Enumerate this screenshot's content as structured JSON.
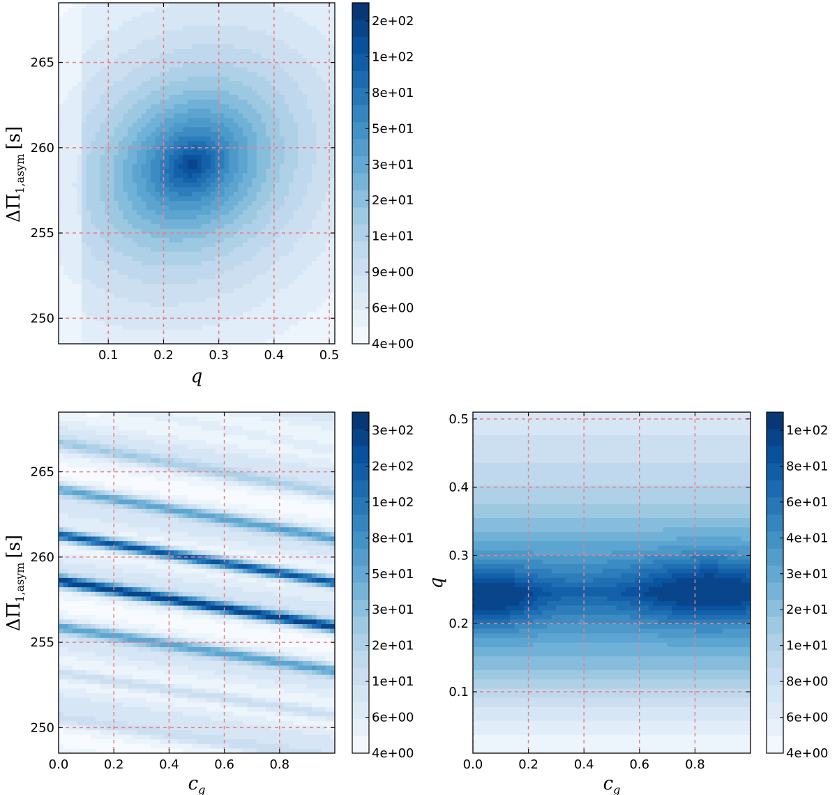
{
  "colors": {
    "colormap": [
      "#f7fbff",
      "#deebf7",
      "#c6dbef",
      "#9ecae1",
      "#6baed6",
      "#4292c6",
      "#2171b5",
      "#08519c",
      "#08306b"
    ],
    "grid": "#e8828a"
  },
  "chart_data": [
    {
      "type": "heatmap",
      "panel": "top-left",
      "xlabel": "q",
      "ylabel": "ΔΠ",
      "ylabel_subscript": "1,asym",
      "ylabel_unit": "[s]",
      "xlim": [
        0.01,
        0.51
      ],
      "ylim": [
        248.5,
        268.5
      ],
      "xticks": [
        0.1,
        0.2,
        0.3,
        0.4,
        0.5
      ],
      "xtick_labels": [
        "0.1",
        "0.2",
        "0.3",
        "0.4",
        "0.5"
      ],
      "yticks": [
        250,
        255,
        260,
        265
      ],
      "ytick_labels": [
        "250",
        "255",
        "260",
        "265"
      ],
      "grid": true,
      "minimum": {
        "x": 0.25,
        "y": 259
      },
      "colorbar_labels": [
        "2e+02",
        "1e+02",
        "8e+01",
        "5e+01",
        "3e+01",
        "2e+01",
        "1e+01",
        "9e+00",
        "6e+00",
        "4e+00"
      ]
    },
    {
      "type": "heatmap",
      "panel": "bottom-left",
      "xlabel": "c",
      "xlabel_subscript": "g",
      "ylabel": "ΔΠ",
      "ylabel_subscript": "1,asym",
      "ylabel_unit": "[s]",
      "xlim": [
        0.0,
        1.0
      ],
      "ylim": [
        248.5,
        268.5
      ],
      "xticks": [
        0.0,
        0.2,
        0.4,
        0.6,
        0.8
      ],
      "xtick_labels": [
        "0.0",
        "0.2",
        "0.4",
        "0.6",
        "0.8"
      ],
      "yticks": [
        250,
        255,
        260,
        265
      ],
      "ytick_labels": [
        "250",
        "255",
        "260",
        "265"
      ],
      "grid": true,
      "minima_bands": [
        {
          "y_at_x0": 261.3,
          "y_at_x1": 258.5
        },
        {
          "y_at_x0": 258.6,
          "y_at_x1": 255.9
        }
      ],
      "colorbar_labels": [
        "3e+02",
        "2e+02",
        "1e+02",
        "8e+01",
        "5e+01",
        "3e+01",
        "2e+01",
        "1e+01",
        "6e+00",
        "4e+00"
      ]
    },
    {
      "type": "heatmap",
      "panel": "bottom-right",
      "xlabel": "c",
      "xlabel_subscript": "g",
      "ylabel": "q",
      "xlim": [
        0.0,
        1.0
      ],
      "ylim": [
        0.01,
        0.51
      ],
      "xticks": [
        0.0,
        0.2,
        0.4,
        0.6,
        0.8
      ],
      "xtick_labels": [
        "0.0",
        "0.2",
        "0.4",
        "0.6",
        "0.8"
      ],
      "yticks": [
        0.1,
        0.2,
        0.3,
        0.4,
        0.5
      ],
      "ytick_labels": [
        "0.1",
        "0.2",
        "0.3",
        "0.4",
        "0.5"
      ],
      "grid": true,
      "minima": [
        {
          "x": 0.05,
          "y": 0.235
        },
        {
          "x": 0.85,
          "y": 0.25
        }
      ],
      "colorbar_labels": [
        "1e+02",
        "8e+01",
        "6e+01",
        "4e+01",
        "3e+01",
        "2e+01",
        "1e+01",
        "8e+00",
        "6e+00",
        "4e+00"
      ]
    }
  ]
}
